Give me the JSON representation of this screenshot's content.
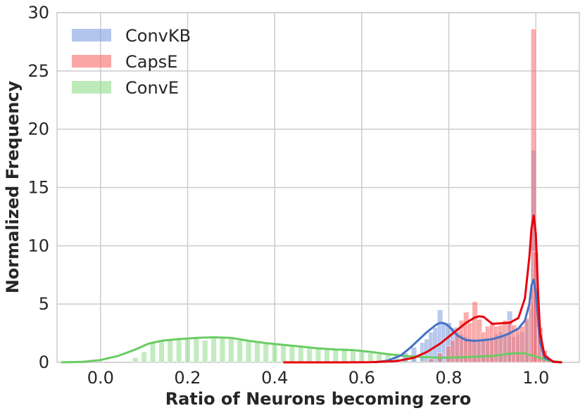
{
  "chart_data": {
    "type": "histogram-kde",
    "xlabel": "Ratio of Neurons becoming zero",
    "ylabel": "Normalized Frequency",
    "xlim": [
      -0.1,
      1.1
    ],
    "ylim": [
      0,
      30
    ],
    "xticks": [
      "0.0",
      "0.2",
      "0.4",
      "0.6",
      "0.8",
      "1.0"
    ],
    "xtick_values": [
      0.0,
      0.2,
      0.4,
      0.6,
      0.8,
      1.0
    ],
    "yticks": [
      "0",
      "5",
      "10",
      "15",
      "20",
      "25",
      "30"
    ],
    "ytick_values": [
      0,
      5,
      10,
      15,
      20,
      25,
      30
    ],
    "grid": true,
    "legend_position": "top-left",
    "series": [
      {
        "name": "ConvKB",
        "fill_color": "#7f9ee0",
        "line_color": "#4472c4",
        "bins": [
          [
            0.66,
            0.05
          ],
          [
            0.68,
            0.3
          ],
          [
            0.7,
            0.8
          ],
          [
            0.72,
            1.3
          ],
          [
            0.74,
            1.7
          ],
          [
            0.75,
            2.0
          ],
          [
            0.76,
            2.6
          ],
          [
            0.77,
            3.0
          ],
          [
            0.78,
            4.5
          ],
          [
            0.79,
            3.4
          ],
          [
            0.8,
            3.4
          ],
          [
            0.81,
            3.0
          ],
          [
            0.82,
            3.0
          ],
          [
            0.83,
            2.4
          ],
          [
            0.84,
            2.2
          ],
          [
            0.85,
            1.8
          ],
          [
            0.86,
            1.8
          ],
          [
            0.87,
            1.9
          ],
          [
            0.88,
            2.0
          ],
          [
            0.89,
            1.9
          ],
          [
            0.9,
            2.0
          ],
          [
            0.91,
            2.4
          ],
          [
            0.92,
            2.6
          ],
          [
            0.93,
            2.4
          ],
          [
            0.94,
            4.4
          ],
          [
            0.95,
            2.2
          ],
          [
            0.96,
            2.4
          ],
          [
            0.97,
            2.6
          ],
          [
            0.98,
            3.6
          ],
          [
            0.99,
            4.6
          ],
          [
            0.995,
            18.2
          ],
          [
            1.0,
            6.8
          ],
          [
            1.01,
            2.4
          ],
          [
            1.02,
            1.0
          ],
          [
            1.03,
            0.3
          ]
        ],
        "kde_x": [
          0.63,
          0.66,
          0.69,
          0.71,
          0.73,
          0.75,
          0.77,
          0.78,
          0.79,
          0.8,
          0.81,
          0.82,
          0.84,
          0.86,
          0.88,
          0.9,
          0.92,
          0.94,
          0.96,
          0.975,
          0.985,
          0.99,
          0.995,
          1.0,
          1.005,
          1.01,
          1.02,
          1.04,
          1.06
        ],
        "kde_y": [
          0.0,
          0.15,
          0.6,
          1.2,
          1.9,
          2.6,
          3.2,
          3.4,
          3.35,
          3.1,
          2.7,
          2.3,
          1.9,
          1.85,
          1.9,
          2.0,
          2.2,
          2.5,
          2.9,
          3.6,
          5.0,
          6.6,
          7.1,
          6.0,
          3.8,
          1.7,
          0.4,
          0.05,
          0.0
        ]
      },
      {
        "name": "CapsE",
        "fill_color": "#f66a6a",
        "line_color": "#e8000b",
        "bins": [
          [
            0.74,
            0.1
          ],
          [
            0.76,
            0.3
          ],
          [
            0.78,
            0.8
          ],
          [
            0.8,
            1.4
          ],
          [
            0.81,
            1.9
          ],
          [
            0.82,
            2.6
          ],
          [
            0.83,
            3.6
          ],
          [
            0.84,
            4.3
          ],
          [
            0.85,
            3.4
          ],
          [
            0.86,
            5.2
          ],
          [
            0.87,
            3.7
          ],
          [
            0.88,
            2.6
          ],
          [
            0.89,
            3.1
          ],
          [
            0.9,
            3.3
          ],
          [
            0.91,
            3.1
          ],
          [
            0.92,
            3.2
          ],
          [
            0.93,
            3.6
          ],
          [
            0.94,
            3.6
          ],
          [
            0.95,
            3.2
          ],
          [
            0.96,
            3.0
          ],
          [
            0.97,
            3.1
          ],
          [
            0.98,
            3.8
          ],
          [
            0.99,
            5.2
          ],
          [
            0.995,
            28.6
          ],
          [
            1.0,
            9.5
          ],
          [
            1.01,
            3.0
          ],
          [
            1.02,
            1.0
          ],
          [
            1.03,
            0.2
          ]
        ],
        "kde_x": [
          0.42,
          0.55,
          0.62,
          0.68,
          0.72,
          0.75,
          0.78,
          0.8,
          0.82,
          0.84,
          0.86,
          0.87,
          0.88,
          0.89,
          0.9,
          0.92,
          0.94,
          0.96,
          0.975,
          0.985,
          0.99,
          0.995,
          1.0,
          1.005,
          1.01,
          1.02,
          1.04,
          1.06
        ],
        "kde_y": [
          0.0,
          0.0,
          0.02,
          0.1,
          0.4,
          0.9,
          1.6,
          2.2,
          2.8,
          3.4,
          3.85,
          3.95,
          3.9,
          3.6,
          3.3,
          3.35,
          3.4,
          3.8,
          5.5,
          9.0,
          11.5,
          12.6,
          11.0,
          6.0,
          2.5,
          0.6,
          0.05,
          0.0
        ]
      },
      {
        "name": "ConvE",
        "fill_color": "#8fdc8a",
        "line_color": "#6acc64",
        "bins": [
          [
            0.08,
            0.4
          ],
          [
            0.1,
            0.9
          ],
          [
            0.12,
            1.7
          ],
          [
            0.14,
            1.8
          ],
          [
            0.16,
            1.9
          ],
          [
            0.18,
            2.0
          ],
          [
            0.2,
            2.0
          ],
          [
            0.22,
            2.1
          ],
          [
            0.24,
            1.9
          ],
          [
            0.26,
            2.2
          ],
          [
            0.28,
            2.1
          ],
          [
            0.3,
            2.1
          ],
          [
            0.32,
            1.9
          ],
          [
            0.34,
            1.8
          ],
          [
            0.36,
            1.7
          ],
          [
            0.38,
            1.6
          ],
          [
            0.4,
            1.6
          ],
          [
            0.42,
            1.5
          ],
          [
            0.44,
            1.4
          ],
          [
            0.46,
            1.3
          ],
          [
            0.48,
            1.2
          ],
          [
            0.5,
            1.2
          ],
          [
            0.52,
            1.1
          ],
          [
            0.54,
            1.1
          ],
          [
            0.56,
            1.2
          ],
          [
            0.58,
            1.0
          ],
          [
            0.6,
            0.9
          ],
          [
            0.62,
            0.8
          ],
          [
            0.64,
            0.7
          ],
          [
            0.66,
            0.7
          ],
          [
            0.68,
            0.5
          ],
          [
            0.7,
            0.5
          ],
          [
            0.72,
            0.5
          ],
          [
            0.74,
            0.5
          ],
          [
            0.76,
            0.4
          ],
          [
            0.78,
            0.4
          ],
          [
            0.8,
            0.4
          ],
          [
            0.82,
            0.5
          ],
          [
            0.84,
            0.5
          ],
          [
            0.86,
            0.5
          ],
          [
            0.88,
            0.5
          ],
          [
            0.9,
            0.5
          ],
          [
            0.92,
            0.6
          ],
          [
            0.94,
            1.0
          ],
          [
            0.96,
            0.8
          ],
          [
            0.98,
            0.6
          ],
          [
            1.0,
            0.4
          ],
          [
            1.02,
            0.2
          ]
        ],
        "kde_x": [
          -0.09,
          -0.04,
          0.0,
          0.04,
          0.08,
          0.11,
          0.14,
          0.18,
          0.22,
          0.26,
          0.3,
          0.34,
          0.38,
          0.42,
          0.46,
          0.5,
          0.54,
          0.58,
          0.62,
          0.66,
          0.7,
          0.74,
          0.78,
          0.82,
          0.86,
          0.9,
          0.94,
          0.97,
          1.0,
          1.03,
          1.06
        ],
        "kde_y": [
          0.0,
          0.05,
          0.2,
          0.55,
          1.1,
          1.6,
          1.85,
          2.0,
          2.1,
          2.15,
          2.1,
          1.85,
          1.65,
          1.5,
          1.35,
          1.2,
          1.1,
          1.05,
          0.9,
          0.7,
          0.55,
          0.45,
          0.4,
          0.42,
          0.48,
          0.55,
          0.75,
          0.8,
          0.5,
          0.15,
          0.0
        ]
      }
    ]
  }
}
